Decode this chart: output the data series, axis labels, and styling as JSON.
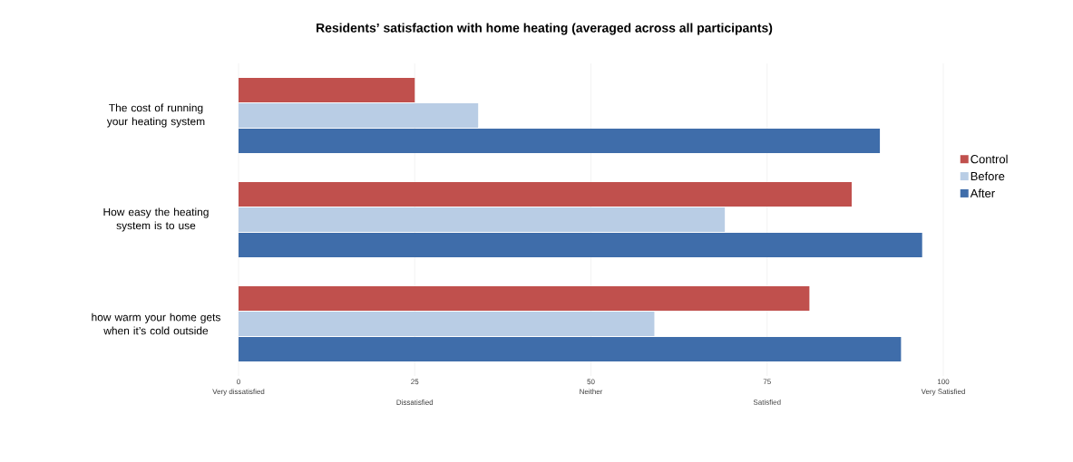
{
  "chart_data": {
    "type": "bar",
    "orientation": "horizontal",
    "title": "Residents’ satisfaction with home heating (averaged across all participants)",
    "categories": [
      "The cost of running your heating system",
      "How easy the heating system is to use",
      "how warm your home gets when it’s cold outside"
    ],
    "series": [
      {
        "name": "Control",
        "color": "#c0504d",
        "values": [
          25,
          87,
          81
        ]
      },
      {
        "name": "Before",
        "color": "#b9cde5",
        "values": [
          34,
          69,
          59
        ]
      },
      {
        "name": "After",
        "color": "#3f6daa",
        "values": [
          91,
          97,
          94
        ]
      }
    ],
    "xlim": [
      0,
      100
    ],
    "xticks": [
      0,
      25,
      50,
      75,
      100
    ],
    "annotations": [
      "Very dissatisfied",
      "Dissatisfied",
      "Neither",
      "Satisfied",
      "Very Satisfied"
    ],
    "grid": "x",
    "legend": "right"
  }
}
